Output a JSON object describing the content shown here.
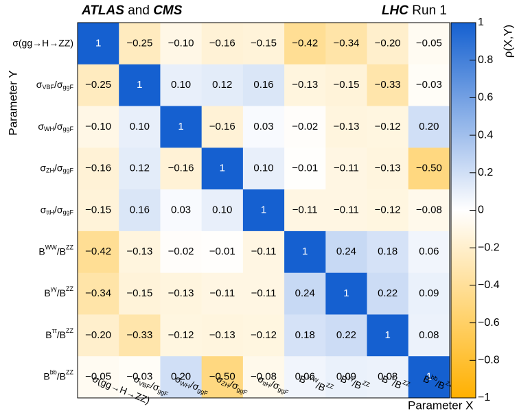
{
  "chart_data": {
    "type": "heatmap",
    "title_left": [
      "ATLAS",
      " and ",
      "CMS"
    ],
    "title_right": [
      "LHC",
      " Run 1"
    ],
    "x_label": "Parameter X",
    "y_label": "Parameter Y",
    "colorbar_label": "ρ(X,Y)",
    "labels": [
      [
        "σ(gg→H→ZZ)"
      ],
      [
        "σ",
        "VBF",
        "/σ",
        "ggF"
      ],
      [
        "σ",
        "WH",
        "/σ",
        "ggF"
      ],
      [
        "σ",
        "ZH",
        "/σ",
        "ggF"
      ],
      [
        "σ",
        "ttH",
        "/σ",
        "ggF"
      ],
      [
        "B",
        "WW",
        "/B",
        "ZZ"
      ],
      [
        "B",
        "γγ",
        "/B",
        "ZZ"
      ],
      [
        "B",
        "ττ",
        "/B",
        "ZZ"
      ],
      [
        "B",
        "bb",
        "/B",
        "ZZ"
      ]
    ],
    "z": [
      [
        1,
        -0.25,
        -0.1,
        -0.16,
        -0.15,
        -0.42,
        -0.34,
        -0.2,
        -0.05
      ],
      [
        -0.25,
        1,
        0.1,
        0.12,
        0.16,
        -0.13,
        -0.15,
        -0.33,
        -0.03
      ],
      [
        -0.1,
        0.1,
        1,
        -0.16,
        0.03,
        -0.02,
        -0.13,
        -0.12,
        0.2
      ],
      [
        -0.16,
        0.12,
        -0.16,
        1,
        0.1,
        -0.01,
        -0.11,
        -0.13,
        -0.5
      ],
      [
        -0.15,
        0.16,
        0.03,
        0.1,
        1,
        -0.11,
        -0.11,
        -0.12,
        -0.08
      ],
      [
        -0.42,
        -0.13,
        -0.02,
        -0.01,
        -0.11,
        1,
        0.24,
        0.18,
        0.06
      ],
      [
        -0.34,
        -0.15,
        -0.13,
        -0.11,
        -0.11,
        0.24,
        1,
        0.22,
        0.09
      ],
      [
        -0.2,
        -0.33,
        -0.12,
        -0.13,
        -0.12,
        0.18,
        0.22,
        1,
        0.08
      ],
      [
        -0.05,
        -0.03,
        0.2,
        -0.5,
        -0.08,
        0.06,
        0.09,
        0.08,
        1
      ]
    ],
    "value_labels": [
      [
        "1",
        "−0.25",
        "−0.10",
        "−0.16",
        "−0.15",
        "−0.42",
        "−0.34",
        "−0.20",
        "−0.05"
      ],
      [
        "−0.25",
        "1",
        "0.10",
        "0.12",
        "0.16",
        "−0.13",
        "−0.15",
        "−0.33",
        "−0.03"
      ],
      [
        "−0.10",
        "0.10",
        "1",
        "−0.16",
        "0.03",
        "−0.02",
        "−0.13",
        "−0.12",
        "0.20"
      ],
      [
        "−0.16",
        "0.12",
        "−0.16",
        "1",
        "0.10",
        "−0.01",
        "−0.11",
        "−0.13",
        "−0.50"
      ],
      [
        "−0.15",
        "0.16",
        "0.03",
        "0.10",
        "1",
        "−0.11",
        "−0.11",
        "−0.12",
        "−0.08"
      ],
      [
        "−0.42",
        "−0.13",
        "−0.02",
        "−0.01",
        "−0.11",
        "1",
        "0.24",
        "0.18",
        "0.06"
      ],
      [
        "−0.34",
        "−0.15",
        "−0.13",
        "−0.11",
        "−0.11",
        "0.24",
        "1",
        "0.22",
        "0.09"
      ],
      [
        "−0.20",
        "−0.33",
        "−0.12",
        "−0.13",
        "−0.12",
        "0.18",
        "0.22",
        "1",
        "0.08"
      ],
      [
        "−0.05",
        "−0.03",
        "0.20",
        "−0.50",
        "−0.08",
        "0.06",
        "0.09",
        "0.08",
        "1"
      ]
    ],
    "zlim": [
      -1,
      1
    ],
    "zticks": [
      {
        "value": -1,
        "label": "−1"
      },
      {
        "value": -0.8,
        "label": "−0.8"
      },
      {
        "value": -0.6,
        "label": "−0.6"
      },
      {
        "value": -0.4,
        "label": "−0.4"
      },
      {
        "value": -0.2,
        "label": "−0.2"
      },
      0,
      0.2,
      0.4,
      0.6,
      0.8,
      1
    ],
    "colors": {
      "low": "#ffb000",
      "mid": "#ffffff",
      "high": "#1560d0"
    }
  }
}
